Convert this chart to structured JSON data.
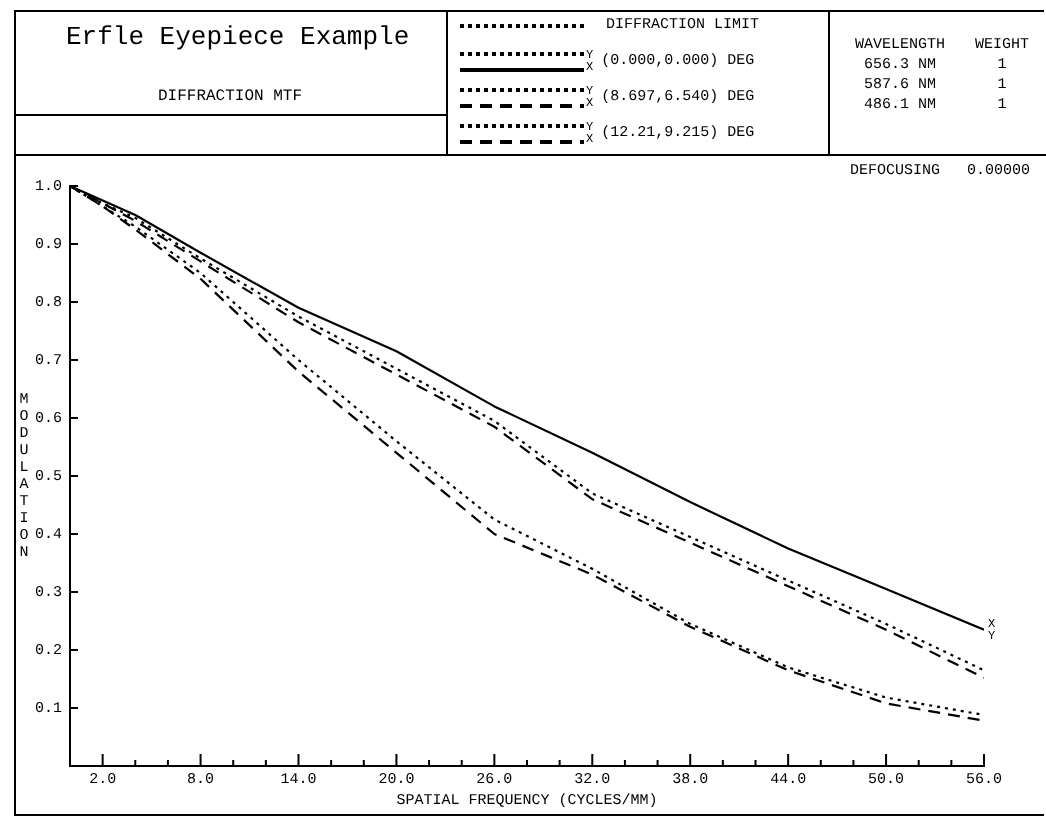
{
  "chart_data": {
    "type": "line",
    "title": "Erfle Eyepiece Example",
    "subtitle": "DIFFRACTION MTF",
    "xlabel": "SPATIAL FREQUENCY (CYCLES/MM)",
    "ylabel": "MODULATION",
    "x": [
      0,
      2,
      4,
      8,
      14,
      20,
      26,
      32,
      38,
      44,
      50,
      56
    ],
    "series": [
      {
        "name": "DIFFRACTION LIMIT",
        "color": "#000000",
        "line_style": "dotted",
        "values": [
          null,
          null,
          null,
          null,
          null,
          null,
          null,
          null,
          null,
          null,
          null,
          null
        ]
      },
      {
        "name": "(0.000,0.000) DEG",
        "color": "#000000",
        "line_style": "dotted",
        "values": [
          null,
          null,
          null,
          null,
          null,
          null,
          null,
          null,
          null,
          null,
          null,
          null
        ]
      },
      {
        "color": "#000000",
        "line_style": "solid",
        "values": [
          1,
          0.975,
          0.95,
          0.885,
          0.79,
          0.715,
          0.62,
          0.54,
          0.455,
          0.375,
          0.305,
          0.235
        ]
      },
      {
        "name": "(8.697,6.540) DEG",
        "color": "#000000",
        "line_style": "dotted",
        "values": [
          1,
          0.97,
          0.945,
          0.875,
          0.775,
          0.685,
          0.595,
          0.47,
          0.395,
          0.32,
          0.245,
          0.165
        ]
      },
      {
        "color": "#000000",
        "line_style": "dashed",
        "values": [
          1,
          0.97,
          0.94,
          0.87,
          0.765,
          0.675,
          0.585,
          0.46,
          0.385,
          0.31,
          0.235,
          0.152
        ]
      },
      {
        "name": "(12.21,9.215) DEG",
        "color": "#000000",
        "line_style": "dotted",
        "values": [
          1,
          0.965,
          0.93,
          0.85,
          0.7,
          0.56,
          0.425,
          0.34,
          0.245,
          0.17,
          0.118,
          0.088
        ]
      },
      {
        "color": "#000000",
        "line_style": "dashed",
        "values": [
          1,
          0.965,
          0.925,
          0.84,
          0.68,
          0.54,
          0.4,
          0.33,
          0.24,
          0.165,
          0.108,
          0.078
        ]
      }
    ],
    "xlim": [
      0,
      56
    ],
    "xticks": [
      {
        "value": 2,
        "label": "2.0"
      },
      {
        "value": 4,
        "label": null
      },
      {
        "value": 6,
        "label": null
      },
      {
        "value": 8,
        "label": "8.0"
      },
      {
        "value": 10,
        "label": null
      },
      {
        "value": 12,
        "label": null
      },
      {
        "value": 14,
        "label": "14.0"
      },
      {
        "value": 16,
        "label": null
      },
      {
        "value": 18,
        "label": null
      },
      {
        "value": 20,
        "label": "20.0"
      },
      {
        "value": 22,
        "label": null
      },
      {
        "value": 24,
        "label": null
      },
      {
        "value": 26,
        "label": "26.0"
      },
      {
        "value": 28,
        "label": null
      },
      {
        "value": 30,
        "label": null
      },
      {
        "value": 32,
        "label": "32.0"
      },
      {
        "value": 34,
        "label": null
      },
      {
        "value": 36,
        "label": null
      },
      {
        "value": 38,
        "label": "38.0"
      },
      {
        "value": 40,
        "label": null
      },
      {
        "value": 42,
        "label": null
      },
      {
        "value": 44,
        "label": "44.0"
      },
      {
        "value": 46,
        "label": null
      },
      {
        "value": 48,
        "label": null
      },
      {
        "value": 50,
        "label": "50.0"
      },
      {
        "value": 52,
        "label": null
      },
      {
        "value": 54,
        "label": null
      },
      {
        "value": 56,
        "label": "56.0"
      }
    ],
    "ylim": [
      0,
      1
    ],
    "yticks": [
      0.1,
      0.2,
      0.3,
      0.4,
      0.5,
      0.6,
      0.7,
      0.8,
      0.9,
      {
        "value": 1,
        "label": "1.0"
      }
    ],
    "grid": false,
    "legend": "top",
    "marker": "none",
    "annotations": [
      {
        "text": "X",
        "x": 56,
        "y": 0.245
      },
      {
        "text": "Y",
        "x": 56,
        "y": 0.225
      },
      "DEFOCUSING   0.00000",
      "WAVELENGTH",
      "WEIGHT",
      "656.3 NM",
      "1",
      "587.6 NM",
      "1",
      "486.1 NM",
      "1"
    ]
  }
}
